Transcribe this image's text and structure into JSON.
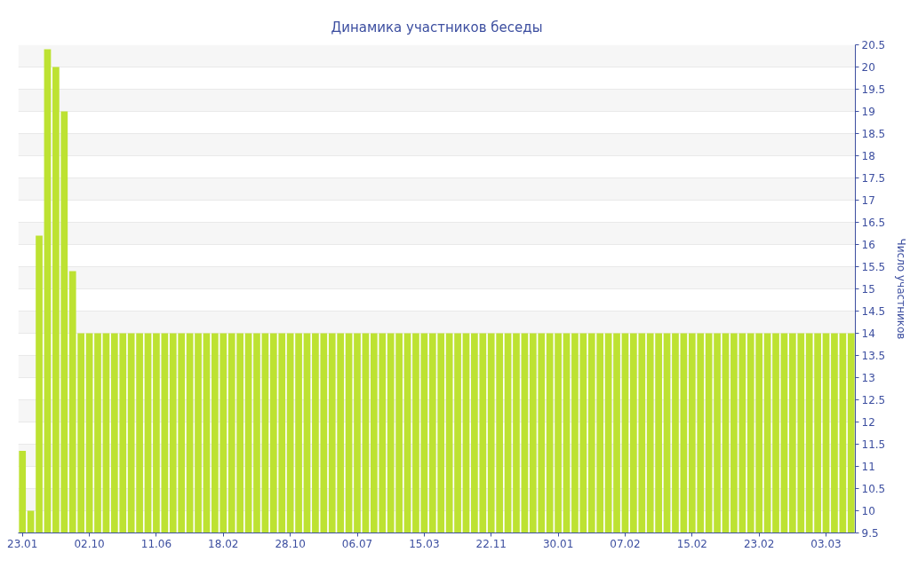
{
  "chart_data": {
    "type": "bar",
    "title": "Динамика участников беседы",
    "ylabel": "Число участников",
    "categories": [
      "23.01",
      null,
      null,
      null,
      null,
      null,
      null,
      null,
      "02.10",
      null,
      null,
      null,
      null,
      null,
      null,
      null,
      "11.06",
      null,
      null,
      null,
      null,
      null,
      null,
      null,
      "18.02",
      null,
      null,
      null,
      null,
      null,
      null,
      null,
      "28.10",
      null,
      null,
      null,
      null,
      null,
      null,
      null,
      "06.07",
      null,
      null,
      null,
      null,
      null,
      null,
      null,
      "15.03",
      null,
      null,
      null,
      null,
      null,
      null,
      null,
      "22.11",
      null,
      null,
      null,
      null,
      null,
      null,
      null,
      "30.01",
      null,
      null,
      null,
      null,
      null,
      null,
      null,
      "07.02",
      null,
      null,
      null,
      null,
      null,
      null,
      null,
      "15.02",
      null,
      null,
      null,
      null,
      null,
      null,
      null,
      "23.02",
      null,
      null,
      null,
      null,
      null,
      null,
      null,
      "03.03",
      null,
      null,
      null
    ],
    "values": [
      11.35,
      10,
      16.2,
      20.4,
      20,
      19,
      15.4,
      14,
      14,
      14,
      14,
      14,
      14,
      14,
      14,
      14,
      14,
      14,
      14,
      14,
      14,
      14,
      14,
      14,
      14,
      14,
      14,
      14,
      14,
      14,
      14,
      14,
      14,
      14,
      14,
      14,
      14,
      14,
      14,
      14,
      14,
      14,
      14,
      14,
      14,
      14,
      14,
      14,
      14,
      14,
      14,
      14,
      14,
      14,
      14,
      14,
      14,
      14,
      14,
      14,
      14,
      14,
      14,
      14,
      14,
      14,
      14,
      14,
      14,
      14,
      14,
      14,
      14,
      14,
      14,
      14,
      14,
      14,
      14,
      14,
      14,
      14,
      14,
      14,
      14,
      14,
      14,
      14,
      14,
      14,
      14,
      14,
      14,
      14,
      14,
      14,
      14,
      14,
      14,
      14
    ],
    "color": "#bde232",
    "ylim": [
      9.5,
      20.5
    ],
    "yticks": [
      9.5,
      10,
      10.5,
      11,
      11.5,
      12,
      12.5,
      13,
      13.5,
      14,
      14.5,
      15,
      15.5,
      16,
      16.5,
      17,
      17.5,
      18,
      18.5,
      19,
      19.5,
      20,
      20.5
    ],
    "grid": "y"
  }
}
